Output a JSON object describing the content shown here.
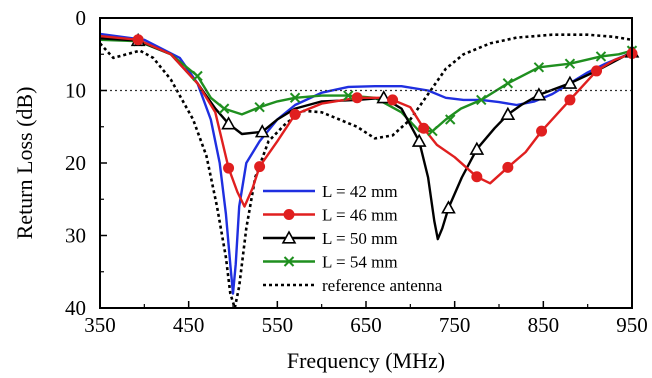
{
  "chart_data": {
    "type": "line",
    "title": "",
    "xlabel": "Frequency (MHz)",
    "ylabel": "Return Loss  (dB)",
    "xlim": [
      350,
      950
    ],
    "ylim": [
      0,
      40
    ],
    "y_inverted": true,
    "xticks": [
      350,
      450,
      550,
      650,
      750,
      850,
      950
    ],
    "xtick_labels": [
      "350",
      "450",
      "550",
      "650",
      "750",
      "850",
      "950"
    ],
    "yticks": [
      0,
      10,
      20,
      30,
      40
    ],
    "ytick_labels": [
      "0",
      "10",
      "20",
      "30",
      "40"
    ],
    "reference_line": 10,
    "grid": false,
    "legend_position": "center-bottom",
    "series": [
      {
        "name": "L = 42 mm",
        "color": "#1f2fe0",
        "marker": "none",
        "dash": "solid",
        "points": [
          [
            350,
            2.2
          ],
          [
            400,
            3.0
          ],
          [
            440,
            5.5
          ],
          [
            460,
            9.0
          ],
          [
            475,
            14.0
          ],
          [
            485,
            20.0
          ],
          [
            492,
            27.0
          ],
          [
            497,
            34.0
          ],
          [
            500,
            38.0
          ],
          [
            503,
            34.0
          ],
          [
            507,
            26.0
          ],
          [
            515,
            20.0
          ],
          [
            530,
            17.0
          ],
          [
            550,
            14.0
          ],
          [
            570,
            12.0
          ],
          [
            600,
            10.3
          ],
          [
            630,
            9.5
          ],
          [
            660,
            9.4
          ],
          [
            690,
            9.4
          ],
          [
            720,
            10.0
          ],
          [
            740,
            11.0
          ],
          [
            760,
            11.3
          ],
          [
            780,
            11.3
          ],
          [
            800,
            11.6
          ],
          [
            820,
            12.0
          ],
          [
            840,
            11.5
          ],
          [
            860,
            10.5
          ],
          [
            880,
            9.0
          ],
          [
            900,
            7.5
          ],
          [
            920,
            6.3
          ],
          [
            940,
            5.3
          ],
          [
            950,
            4.8
          ]
        ]
      },
      {
        "name": "L = 46 mm",
        "color": "#e01f1f",
        "marker": "circle",
        "dash": "solid",
        "points": [
          [
            350,
            2.5
          ],
          [
            393,
            3.0
          ],
          [
            430,
            5.0
          ],
          [
            460,
            9.0
          ],
          [
            480,
            13.0
          ],
          [
            495,
            20.7
          ],
          [
            505,
            24.0
          ],
          [
            513,
            26.0
          ],
          [
            522,
            23.5
          ],
          [
            530,
            20.5
          ],
          [
            550,
            17.0
          ],
          [
            570,
            13.3
          ],
          [
            600,
            11.8
          ],
          [
            620,
            11.4
          ],
          [
            640,
            11.0
          ],
          [
            670,
            11.0
          ],
          [
            680,
            11.3
          ],
          [
            700,
            12.3
          ],
          [
            715,
            15.2
          ],
          [
            730,
            17.5
          ],
          [
            750,
            19.2
          ],
          [
            775,
            21.9
          ],
          [
            790,
            22.8
          ],
          [
            810,
            20.6
          ],
          [
            830,
            18.5
          ],
          [
            848,
            15.6
          ],
          [
            880,
            11.3
          ],
          [
            910,
            7.3
          ],
          [
            930,
            5.8
          ],
          [
            950,
            4.9
          ]
        ]
      },
      {
        "name": "L = 50 mm",
        "color": "#000000",
        "marker": "triangle",
        "dash": "solid",
        "points": [
          [
            350,
            2.8
          ],
          [
            393,
            3.1
          ],
          [
            430,
            5.0
          ],
          [
            460,
            9.0
          ],
          [
            480,
            12.5
          ],
          [
            495,
            14.6
          ],
          [
            510,
            16.0
          ],
          [
            533,
            15.7
          ],
          [
            550,
            14.0
          ],
          [
            570,
            12.5
          ],
          [
            600,
            11.5
          ],
          [
            640,
            11.3
          ],
          [
            670,
            11.0
          ],
          [
            690,
            12.5
          ],
          [
            710,
            17.0
          ],
          [
            720,
            22.0
          ],
          [
            727,
            28.0
          ],
          [
            731,
            30.5
          ],
          [
            736,
            29.0
          ],
          [
            743,
            26.2
          ],
          [
            758,
            22.0
          ],
          [
            775,
            18.1
          ],
          [
            795,
            15.2
          ],
          [
            810,
            13.3
          ],
          [
            825,
            12.0
          ],
          [
            845,
            10.6
          ],
          [
            880,
            9.0
          ],
          [
            910,
            7.3
          ],
          [
            930,
            6.0
          ],
          [
            950,
            4.7
          ]
        ]
      },
      {
        "name": "L = 54 mm",
        "color": "#1f8f1f",
        "marker": "x",
        "dash": "solid",
        "points": [
          [
            350,
            3.0
          ],
          [
            393,
            3.2
          ],
          [
            430,
            5.0
          ],
          [
            460,
            8.0
          ],
          [
            475,
            11.0
          ],
          [
            490,
            12.5
          ],
          [
            510,
            13.3
          ],
          [
            530,
            12.3
          ],
          [
            550,
            11.5
          ],
          [
            570,
            11.0
          ],
          [
            600,
            10.7
          ],
          [
            630,
            10.7
          ],
          [
            660,
            11.0
          ],
          [
            690,
            13.0
          ],
          [
            710,
            15.6
          ],
          [
            725,
            15.6
          ],
          [
            740,
            14.0
          ],
          [
            757,
            12.5
          ],
          [
            780,
            11.3
          ],
          [
            810,
            9.0
          ],
          [
            845,
            6.8
          ],
          [
            880,
            6.3
          ],
          [
            915,
            5.3
          ],
          [
            935,
            5.0
          ],
          [
            950,
            4.5
          ]
        ]
      },
      {
        "name": "reference antenna",
        "color": "#000000",
        "marker": "none",
        "dash": "dotted",
        "points": [
          [
            350,
            3.5
          ],
          [
            365,
            5.5
          ],
          [
            380,
            5.0
          ],
          [
            395,
            4.5
          ],
          [
            410,
            5.5
          ],
          [
            430,
            8.5
          ],
          [
            455,
            14.0
          ],
          [
            470,
            19.0
          ],
          [
            482,
            26.0
          ],
          [
            492,
            33.0
          ],
          [
            497,
            38.0
          ],
          [
            502,
            40.0
          ],
          [
            507,
            37.0
          ],
          [
            515,
            29.0
          ],
          [
            525,
            22.0
          ],
          [
            540,
            17.0
          ],
          [
            560,
            14.5
          ],
          [
            580,
            12.8
          ],
          [
            600,
            13.0
          ],
          [
            620,
            14.0
          ],
          [
            640,
            15.0
          ],
          [
            660,
            16.6
          ],
          [
            680,
            16.2
          ],
          [
            700,
            14.0
          ],
          [
            720,
            10.5
          ],
          [
            740,
            7.0
          ],
          [
            760,
            5.0
          ],
          [
            790,
            3.5
          ],
          [
            820,
            2.7
          ],
          [
            860,
            2.3
          ],
          [
            900,
            2.3
          ],
          [
            930,
            2.6
          ],
          [
            950,
            3.0
          ]
        ]
      }
    ],
    "markers": {
      "L = 46 mm": [
        [
          393,
          3.0
        ],
        [
          495,
          20.7
        ],
        [
          530,
          20.5
        ],
        [
          570,
          13.3
        ],
        [
          640,
          11.0
        ],
        [
          680,
          11.3
        ],
        [
          715,
          15.2
        ],
        [
          775,
          21.9
        ],
        [
          810,
          20.6
        ],
        [
          848,
          15.6
        ],
        [
          880,
          11.3
        ],
        [
          910,
          7.3
        ],
        [
          950,
          4.9
        ]
      ],
      "L = 50 mm": [
        [
          393,
          3.1
        ],
        [
          495,
          14.6
        ],
        [
          533,
          15.7
        ],
        [
          670,
          11.0
        ],
        [
          710,
          17.0
        ],
        [
          743,
          26.2
        ],
        [
          775,
          18.1
        ],
        [
          810,
          13.3
        ],
        [
          845,
          10.6
        ],
        [
          880,
          9.0
        ],
        [
          950,
          4.7
        ]
      ],
      "L = 54 mm": [
        [
          393,
          3.2
        ],
        [
          460,
          8.0
        ],
        [
          490,
          12.5
        ],
        [
          530,
          12.3
        ],
        [
          570,
          11.0
        ],
        [
          630,
          10.7
        ],
        [
          725,
          15.6
        ],
        [
          745,
          14.0
        ],
        [
          780,
          11.3
        ],
        [
          810,
          9.0
        ],
        [
          845,
          6.8
        ],
        [
          880,
          6.3
        ],
        [
          915,
          5.3
        ],
        [
          950,
          4.5
        ]
      ]
    }
  }
}
